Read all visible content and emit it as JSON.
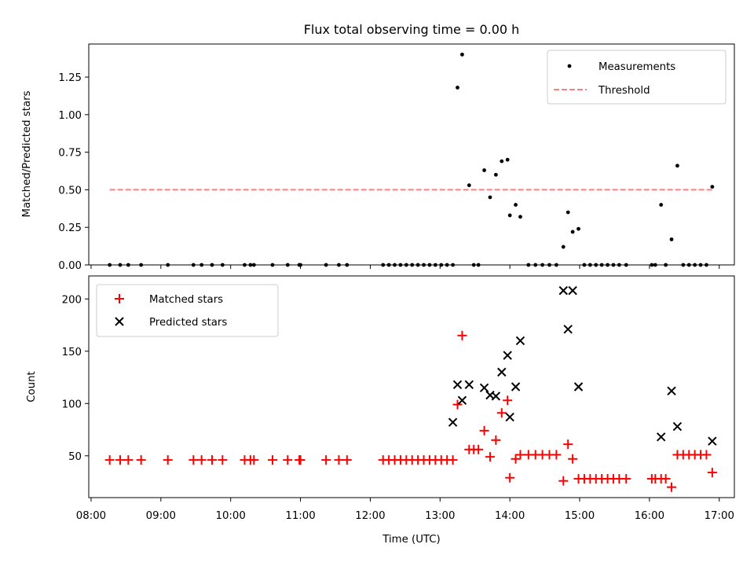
{
  "chart_data": [
    {
      "type": "scatter",
      "title": "Flux total observing time = 0.00 h",
      "xlabel": "",
      "ylabel": "Matched/Predicted stars",
      "xlim": [
        "07:58",
        "17:13"
      ],
      "ylim": [
        0,
        1.47
      ],
      "yticks": [
        "0.00",
        "0.25",
        "0.50",
        "0.75",
        "1.00",
        "1.25"
      ],
      "grid": false,
      "legend": {
        "placement": "top-right",
        "entries": [
          {
            "label": "Measurements",
            "marker": "dot",
            "color": "#000000"
          },
          {
            "label": "Threshold",
            "marker": "dashed-line",
            "color": "#ff7f7f"
          }
        ]
      },
      "threshold": {
        "name": "Threshold",
        "y": 0.5,
        "x": [
          "08:16",
          "16:55"
        ],
        "color": "#ff7f7f"
      },
      "series": [
        {
          "name": "Measurements",
          "color": "#000000",
          "x": [
            "08:16",
            "08:25",
            "08:32",
            "08:43",
            "09:06",
            "09:28",
            "09:35",
            "09:44",
            "09:53",
            "10:12",
            "10:17",
            "10:20",
            "10:36",
            "10:49",
            "10:59",
            "11:00",
            "11:22",
            "11:33",
            "11:40",
            "12:11",
            "12:16",
            "12:21",
            "12:26",
            "12:31",
            "12:36",
            "12:41",
            "12:46",
            "12:51",
            "12:56",
            "13:01",
            "13:06",
            "13:11",
            "13:15",
            "13:19",
            "13:25",
            "13:29",
            "13:33",
            "13:38",
            "13:43",
            "13:48",
            "13:53",
            "13:58",
            "14:00",
            "14:05",
            "14:09",
            "14:16",
            "14:22",
            "14:28",
            "14:34",
            "14:40",
            "14:46",
            "14:50",
            "14:54",
            "14:59",
            "15:04",
            "15:09",
            "15:14",
            "15:19",
            "15:24",
            "15:29",
            "15:34",
            "15:40",
            "16:02",
            "16:05",
            "16:10",
            "16:14",
            "16:19",
            "16:24",
            "16:29",
            "16:34",
            "16:39",
            "16:44",
            "16:49",
            "16:54"
          ],
          "y": [
            0,
            0,
            0,
            0,
            0,
            0,
            0,
            0,
            0,
            0,
            0,
            0,
            0,
            0,
            0,
            0,
            0,
            0,
            0,
            0,
            0,
            0,
            0,
            0,
            0,
            0,
            0,
            0,
            0,
            0,
            0,
            0,
            1.18,
            1.4,
            0.53,
            0,
            0,
            0.63,
            0.45,
            0.6,
            0.69,
            0.7,
            0.33,
            0.4,
            0.32,
            0,
            0,
            0,
            0,
            0,
            0.12,
            0.35,
            0.22,
            0.24,
            0,
            0,
            0,
            0,
            0,
            0,
            0,
            0,
            0,
            0,
            0.4,
            0,
            0.17,
            0.66,
            0,
            0,
            0,
            0,
            0,
            0.52
          ]
        }
      ]
    },
    {
      "type": "scatter",
      "title": "",
      "xlabel": "Time (UTC)",
      "ylabel": "Count",
      "xlim": [
        "07:58",
        "17:13"
      ],
      "xticks": [
        "08:00",
        "09:00",
        "10:00",
        "11:00",
        "12:00",
        "13:00",
        "14:00",
        "15:00",
        "16:00",
        "17:00"
      ],
      "ylim": [
        10,
        222
      ],
      "yticks": [
        "50",
        "100",
        "150",
        "200"
      ],
      "grid": false,
      "legend": {
        "placement": "top-left",
        "entries": [
          {
            "label": "Matched stars",
            "marker": "plus",
            "color": "#ff0000"
          },
          {
            "label": "Predicted stars",
            "marker": "x",
            "color": "#000000"
          }
        ]
      },
      "series": [
        {
          "name": "Matched stars",
          "color": "#ff0000",
          "marker": "plus",
          "x": [
            "08:16",
            "08:25",
            "08:32",
            "08:43",
            "09:06",
            "09:28",
            "09:35",
            "09:44",
            "09:53",
            "10:12",
            "10:17",
            "10:20",
            "10:36",
            "10:49",
            "10:59",
            "11:00",
            "11:22",
            "11:33",
            "11:40",
            "12:11",
            "12:16",
            "12:21",
            "12:26",
            "12:31",
            "12:36",
            "12:41",
            "12:46",
            "12:51",
            "12:56",
            "13:01",
            "13:06",
            "13:11",
            "13:15",
            "13:19",
            "13:25",
            "13:29",
            "13:33",
            "13:38",
            "13:43",
            "13:48",
            "13:53",
            "13:58",
            "14:00",
            "14:05",
            "14:09",
            "14:16",
            "14:22",
            "14:28",
            "14:34",
            "14:40",
            "14:46",
            "14:50",
            "14:54",
            "14:59",
            "15:04",
            "15:09",
            "15:14",
            "15:19",
            "15:24",
            "15:29",
            "15:34",
            "15:40",
            "16:02",
            "16:05",
            "16:10",
            "16:14",
            "16:19",
            "16:24",
            "16:29",
            "16:34",
            "16:39",
            "16:44",
            "16:49",
            "16:54"
          ],
          "y": [
            46,
            46,
            46,
            46,
            46,
            46,
            46,
            46,
            46,
            46,
            46,
            46,
            46,
            46,
            46,
            46,
            46,
            46,
            46,
            46,
            46,
            46,
            46,
            46,
            46,
            46,
            46,
            46,
            46,
            46,
            46,
            46,
            99,
            165,
            56,
            56,
            56,
            74,
            49,
            65,
            91,
            103,
            29,
            47,
            51,
            51,
            51,
            51,
            51,
            51,
            26,
            61,
            47,
            28,
            28,
            28,
            28,
            28,
            28,
            28,
            28,
            28,
            28,
            28,
            28,
            28,
            20,
            51,
            51,
            51,
            51,
            51,
            51,
            34
          ]
        },
        {
          "name": "Predicted stars",
          "color": "#000000",
          "marker": "x",
          "x": [
            "13:11",
            "13:15",
            "13:19",
            "13:25",
            "13:38",
            "13:43",
            "13:48",
            "13:53",
            "13:58",
            "14:00",
            "14:05",
            "14:09",
            "14:46",
            "14:50",
            "14:54",
            "14:59",
            "16:10",
            "16:19",
            "16:24",
            "16:54"
          ],
          "y": [
            82,
            118,
            103,
            118,
            115,
            108,
            107,
            130,
            146,
            87,
            116,
            160,
            208,
            171,
            208,
            116,
            68,
            112,
            78,
            64
          ]
        }
      ]
    }
  ]
}
